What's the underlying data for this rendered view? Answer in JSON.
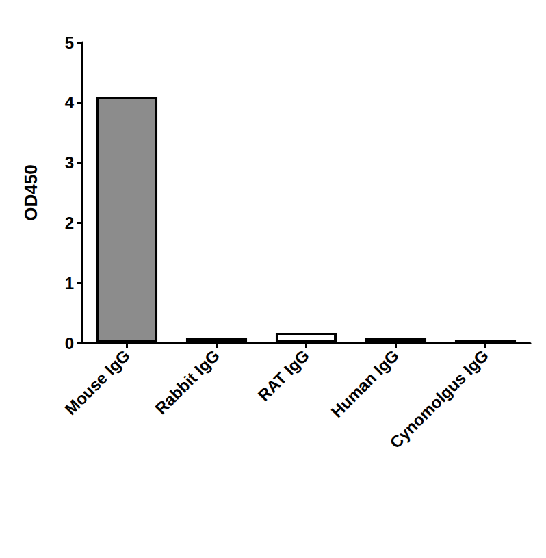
{
  "chart_data": {
    "type": "bar",
    "y_label": "OD450",
    "categories": [
      "Mouse IgG",
      "Rabbit IgG",
      "RAT IgG",
      "Human IgG",
      "Cynomolgus IgG"
    ],
    "values": [
      4.1,
      0.08,
      0.17,
      0.09,
      0.05
    ],
    "colors": [
      "#8c8c8c",
      "#ffffff",
      "#ffffff",
      "#ffffff",
      "#ffffff"
    ],
    "ylim": [
      0,
      5
    ],
    "yticks": [
      0,
      1,
      2,
      3,
      4,
      5
    ],
    "grid": false
  }
}
